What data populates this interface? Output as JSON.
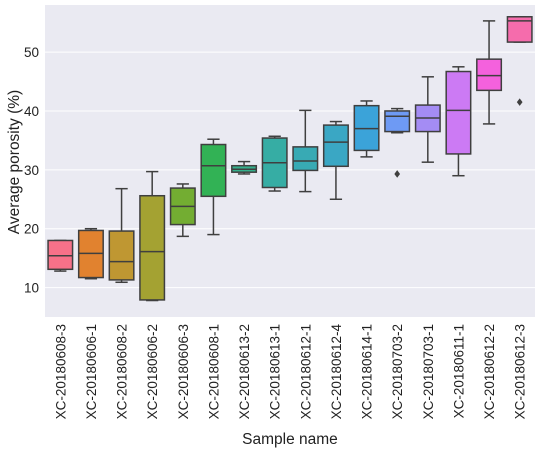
{
  "chart_data": {
    "type": "box",
    "xlabel": "Sample name",
    "ylabel": "Average porosity (%)",
    "ylim": [
      5,
      58
    ],
    "yticks": [
      10,
      20,
      30,
      40,
      50
    ],
    "grid": "horizontal",
    "background": "#eaeaf2",
    "categories": [
      "XC-20180608-3",
      "XC-20180606-1",
      "XC-20180608-2",
      "XC-20180606-2",
      "XC-20180606-3",
      "XC-20180608-1",
      "XC-20180613-2",
      "XC-20180613-1",
      "XC-20180612-1",
      "XC-20180612-4",
      "XC-20180614-1",
      "XC-20180703-2",
      "XC-20180703-1",
      "XC-20180611-1",
      "XC-20180612-2",
      "XC-20180612-3"
    ],
    "boxes": [
      {
        "min": 12.8,
        "q1": 13.1,
        "median": 15.4,
        "q3": 18.0,
        "max": 18.0,
        "color": "#f77189",
        "outliers": []
      },
      {
        "min": 11.5,
        "q1": 11.7,
        "median": 15.8,
        "q3": 19.7,
        "max": 20.0,
        "color": "#e1822f",
        "outliers": []
      },
      {
        "min": 10.9,
        "q1": 11.3,
        "median": 14.4,
        "q3": 19.6,
        "max": 26.8,
        "color": "#bf9732",
        "outliers": []
      },
      {
        "min": 7.8,
        "q1": 7.9,
        "median": 16.1,
        "q3": 25.6,
        "max": 29.7,
        "color": "#a4a232",
        "outliers": []
      },
      {
        "min": 18.7,
        "q1": 20.7,
        "median": 23.8,
        "q3": 26.9,
        "max": 27.6,
        "color": "#73ad32",
        "outliers": []
      },
      {
        "min": 19.0,
        "q1": 25.5,
        "median": 30.7,
        "q3": 34.3,
        "max": 35.2,
        "color": "#32b255",
        "outliers": []
      },
      {
        "min": 29.3,
        "q1": 29.6,
        "median": 30.1,
        "q3": 30.7,
        "max": 31.4,
        "color": "#34af8b",
        "outliers": []
      },
      {
        "min": 26.4,
        "q1": 27.0,
        "median": 31.2,
        "q3": 35.4,
        "max": 35.7,
        "color": "#36ada4",
        "outliers": []
      },
      {
        "min": 26.3,
        "q1": 29.9,
        "median": 31.5,
        "q3": 33.9,
        "max": 40.1,
        "color": "#38aab4",
        "outliers": []
      },
      {
        "min": 25.0,
        "q1": 30.6,
        "median": 34.7,
        "q3": 37.6,
        "max": 38.2,
        "color": "#3aa7c4",
        "outliers": []
      },
      {
        "min": 32.2,
        "q1": 33.3,
        "median": 37.0,
        "q3": 40.9,
        "max": 41.7,
        "color": "#3ba3d9",
        "outliers": []
      },
      {
        "min": 36.3,
        "q1": 36.5,
        "median": 39.1,
        "q3": 40.0,
        "max": 40.4,
        "color": "#6e9af4",
        "outliers": [
          29.3
        ]
      },
      {
        "min": 31.3,
        "q1": 36.5,
        "median": 38.8,
        "q3": 41.0,
        "max": 45.8,
        "color": "#a48cf4",
        "outliers": []
      },
      {
        "min": 29.0,
        "q1": 32.7,
        "median": 40.1,
        "q3": 46.7,
        "max": 47.5,
        "color": "#cc7af4",
        "outliers": []
      },
      {
        "min": 37.8,
        "q1": 43.5,
        "median": 46.0,
        "q3": 48.8,
        "max": 55.3,
        "color": "#f461dd",
        "outliers": []
      },
      {
        "min": 51.7,
        "q1": 51.7,
        "median": 55.3,
        "q3": 56.0,
        "max": 56.0,
        "color": "#f56cac",
        "outliers": [
          41.5
        ]
      }
    ]
  }
}
